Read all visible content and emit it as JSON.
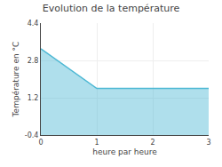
{
  "chart_data": {
    "type": "area",
    "title": "Evolution de la température",
    "xlabel": "heure par heure",
    "ylabel": "Température en °C",
    "x": [
      0,
      1,
      3
    ],
    "values": [
      3.3,
      1.6,
      1.6
    ],
    "color": "#4db8d4",
    "xlim": [
      0,
      3
    ],
    "ylim": [
      -0.4,
      4.4
    ],
    "xticks": [
      0,
      1,
      2,
      3
    ],
    "yticks": [
      -0.4,
      1.2,
      2.8,
      4.4
    ],
    "grid": true
  }
}
